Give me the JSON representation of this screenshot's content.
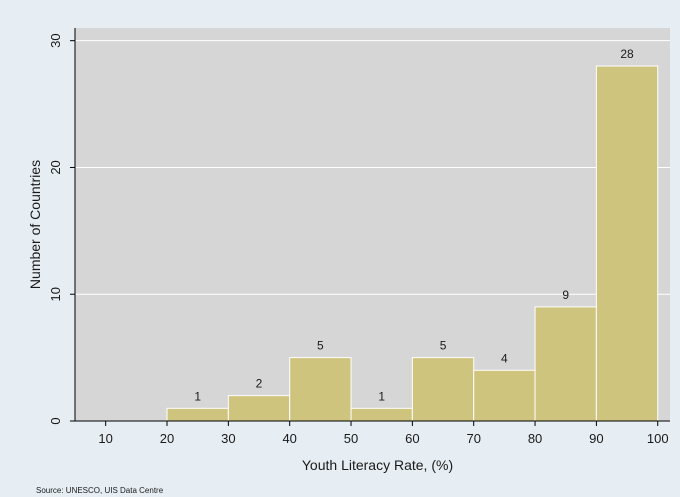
{
  "chart_data": {
    "type": "bar",
    "title": "",
    "xlabel": "Youth Literacy Rate, (%)",
    "ylabel": "Number of Countries",
    "bins": [
      {
        "start": 10,
        "end": 20,
        "value": 0,
        "label": ""
      },
      {
        "start": 20,
        "end": 30,
        "value": 1,
        "label": "1"
      },
      {
        "start": 30,
        "end": 40,
        "value": 2,
        "label": "2"
      },
      {
        "start": 40,
        "end": 50,
        "value": 5,
        "label": "5"
      },
      {
        "start": 50,
        "end": 60,
        "value": 1,
        "label": "1"
      },
      {
        "start": 60,
        "end": 70,
        "value": 5,
        "label": "5"
      },
      {
        "start": 70,
        "end": 80,
        "value": 4,
        "label": "4"
      },
      {
        "start": 80,
        "end": 90,
        "value": 9,
        "label": "9"
      },
      {
        "start": 90,
        "end": 100,
        "value": 28,
        "label": "28"
      }
    ],
    "xticks": [
      10,
      20,
      30,
      40,
      50,
      60,
      70,
      80,
      90,
      100
    ],
    "yticks": [
      0,
      10,
      20,
      30
    ],
    "xlim": [
      5,
      102
    ],
    "ylim": [
      0,
      31
    ],
    "grid": true,
    "colors": {
      "bar_fill": "#cfc47e",
      "bar_stroke": "#ffffff",
      "plot_bg": "#d6d6d6",
      "page_bg": "#e6eef4",
      "gridline": "#ffffff"
    }
  },
  "source_note": "Source: UNESCO, UIS Data Centre"
}
